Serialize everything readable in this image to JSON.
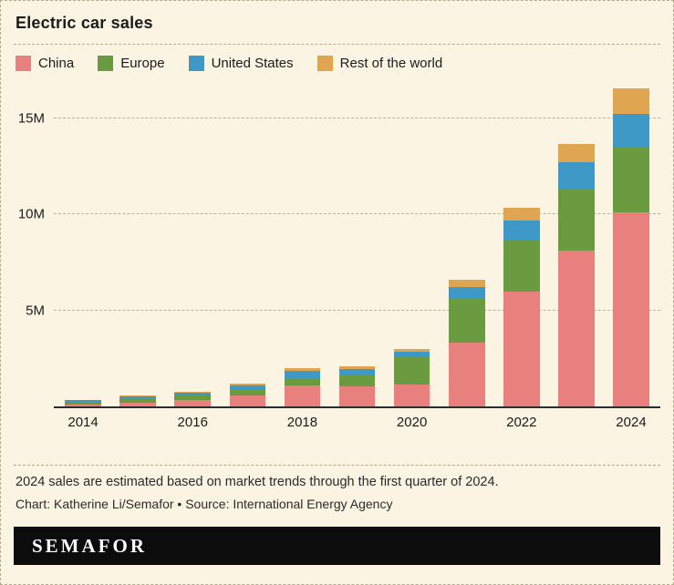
{
  "page": {
    "title": "Electric car sales",
    "footnote": "2024 sales are estimated based on market trends through the first quarter of 2024.",
    "credit": "Chart: Katherine Li/Semafor • Source: International Energy Agency",
    "brand": "SEMAFOR"
  },
  "colors": {
    "background": "#fbf4e2",
    "axis": "#2d2d2d",
    "gridline": "#b9b19b",
    "divider": "#b3aa8e",
    "brand_bar": "#0c0c0c",
    "brand_text": "#ffffff"
  },
  "chart_data": {
    "type": "bar",
    "stacked": true,
    "title": "Electric car sales",
    "xlabel": "",
    "ylabel": "",
    "unit": "millions of cars",
    "grid": "dashed horizontal",
    "legend_position": "top",
    "categories": [
      2014,
      2015,
      2016,
      2017,
      2018,
      2019,
      2020,
      2021,
      2022,
      2023,
      2024
    ],
    "x_tick_labels": [
      "2014",
      "2016",
      "2018",
      "2020",
      "2022",
      "2024"
    ],
    "ymax": 16.7,
    "yticks": [
      {
        "value": 5,
        "label": "5M"
      },
      {
        "value": 10,
        "label": "10M"
      },
      {
        "value": 15,
        "label": "15M"
      }
    ],
    "series": [
      {
        "name": "China",
        "color": "#e8807d",
        "values": [
          0.1,
          0.2,
          0.33,
          0.58,
          1.1,
          1.06,
          1.16,
          3.3,
          6.0,
          8.1,
          10.1
        ]
      },
      {
        "name": "Europe",
        "color": "#6b9b40",
        "values": [
          0.1,
          0.2,
          0.22,
          0.31,
          0.39,
          0.56,
          1.4,
          2.3,
          2.7,
          3.2,
          3.4
        ]
      },
      {
        "name": "United States",
        "color": "#3f99c7",
        "values": [
          0.12,
          0.11,
          0.16,
          0.2,
          0.36,
          0.33,
          0.3,
          0.63,
          1.0,
          1.4,
          1.75
        ]
      },
      {
        "name": "Rest of the world",
        "color": "#e0a551",
        "values": [
          0.03,
          0.04,
          0.06,
          0.1,
          0.15,
          0.15,
          0.15,
          0.35,
          0.65,
          0.95,
          1.3
        ]
      }
    ]
  }
}
